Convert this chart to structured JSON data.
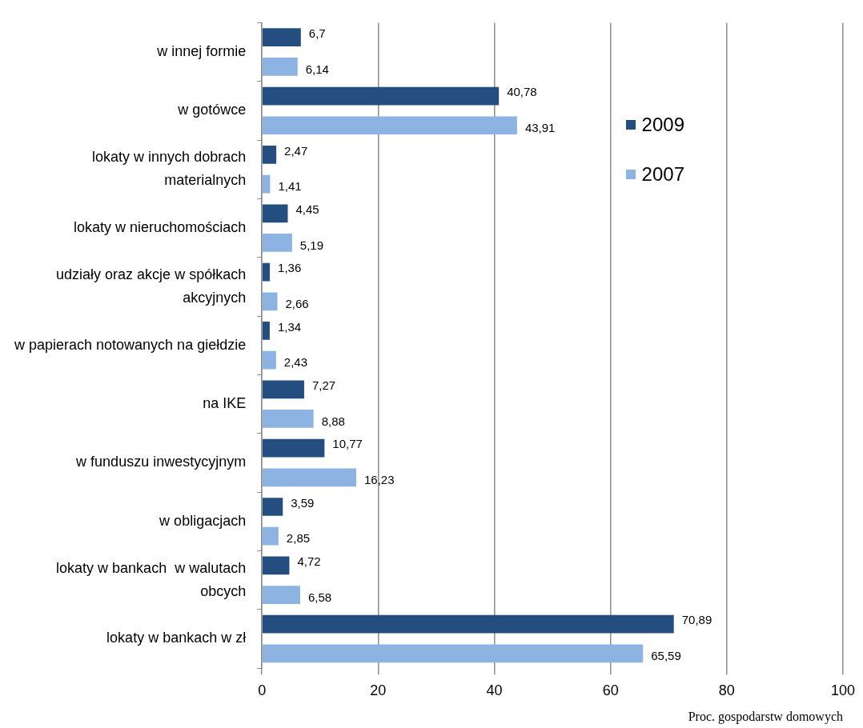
{
  "chart_data": {
    "type": "bar",
    "orientation": "horizontal",
    "xlabel": "Proc. gospodarstw domowych",
    "categories": [
      "w innej formie",
      "w gotówce",
      "lokaty w innych dobrach materialnych",
      "lokaty w nieruchomościach",
      "udziały oraz akcje w spółkach akcyjnych",
      "w papierach notowanych na giełdzie",
      "na IKE",
      "w funduszu inwestycyjnym",
      "w obligacjach",
      "lokaty w bankach  w walutach obcych",
      "lokaty w bankach w zł"
    ],
    "series": [
      {
        "name": "2009",
        "color": "#254e80",
        "values": [
          6.7,
          40.78,
          2.47,
          4.45,
          1.36,
          1.34,
          7.27,
          10.77,
          3.59,
          4.72,
          70.89
        ],
        "value_labels": [
          "6,7",
          "40,78",
          "2,47",
          "4,45",
          "1,36",
          "1,34",
          "7,27",
          "10,77",
          "3,59",
          "4,72",
          "70,89"
        ]
      },
      {
        "name": "2007",
        "color": "#8db3e2",
        "values": [
          6.14,
          43.91,
          1.41,
          5.19,
          2.66,
          2.43,
          8.88,
          16.23,
          2.85,
          6.58,
          65.59
        ],
        "value_labels": [
          "6,14",
          "43,91",
          "1,41",
          "5,19",
          "2,66",
          "2,43",
          "8,88",
          "16,23",
          "2,85",
          "6,58",
          "65,59"
        ]
      }
    ],
    "xlim": [
      0,
      100
    ],
    "xticks": [
      0,
      20,
      40,
      60,
      80,
      100
    ],
    "grid": "x",
    "legend": "top right"
  }
}
